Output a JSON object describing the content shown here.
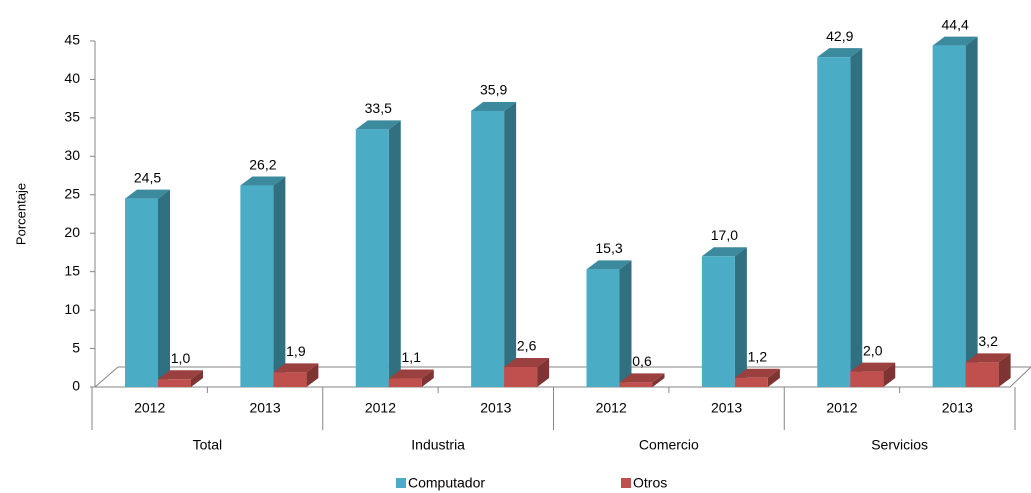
{
  "chart_data": {
    "type": "bar3d",
    "y_label": "Porcentaje",
    "categories": [
      "2012",
      "2013",
      "2012",
      "2013",
      "2012",
      "2013",
      "2012",
      "2013"
    ],
    "groups": [
      "Total",
      "Industria",
      "Comercio",
      "Servicios"
    ],
    "series": [
      {
        "name": "Computador",
        "color": "#4bacc6",
        "values": [
          24.5,
          26.2,
          33.5,
          35.9,
          15.3,
          17.0,
          42.9,
          44.4
        ],
        "value_labels": [
          "24,5",
          "26,2",
          "33,5",
          "35,9",
          "15,3",
          "17,0",
          "42,9",
          "44,4"
        ]
      },
      {
        "name": "Otros",
        "color": "#c0504d",
        "values": [
          1.0,
          1.9,
          1.1,
          2.6,
          0.6,
          1.2,
          2.0,
          3.2
        ],
        "value_labels": [
          "1,0",
          "1,9",
          "1,1",
          "2,6",
          "0,6",
          "1,2",
          "2,0",
          "3,2"
        ]
      }
    ],
    "ylim": [
      0,
      45
    ],
    "yticks": [
      0,
      5,
      10,
      15,
      20,
      25,
      30,
      35,
      40,
      45
    ],
    "legend": "bottom"
  }
}
